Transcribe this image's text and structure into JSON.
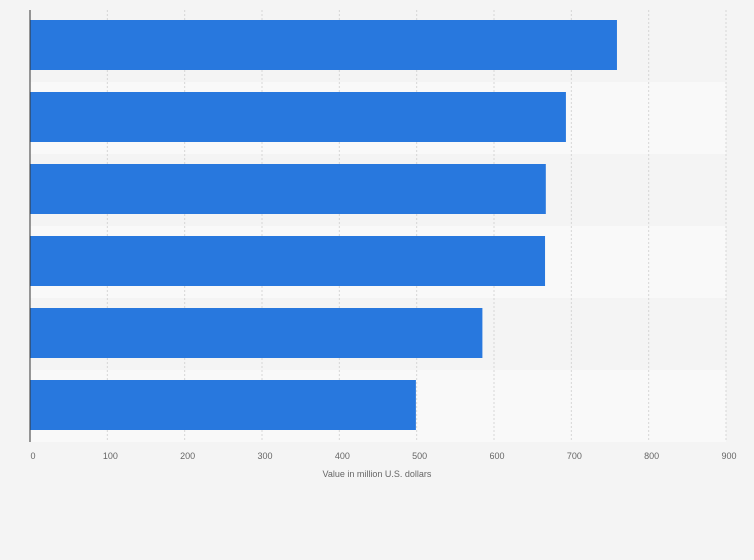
{
  "chart_data": {
    "type": "bar",
    "orientation": "horizontal",
    "categories": [
      "",
      "",
      "",
      "",
      "",
      ""
    ],
    "values": [
      759,
      693,
      667,
      666,
      585,
      499
    ],
    "title": "",
    "xlabel": "Value in million U.S. dollars",
    "ylabel": "",
    "xlim": [
      0,
      900
    ],
    "xticks": [
      "0",
      "100",
      "200",
      "300",
      "400",
      "500",
      "600",
      "700",
      "800",
      "900"
    ],
    "grid": true,
    "bar_color": "#2878de",
    "band_colors": [
      "#f4f4f4",
      "#f9f9f9"
    ]
  }
}
